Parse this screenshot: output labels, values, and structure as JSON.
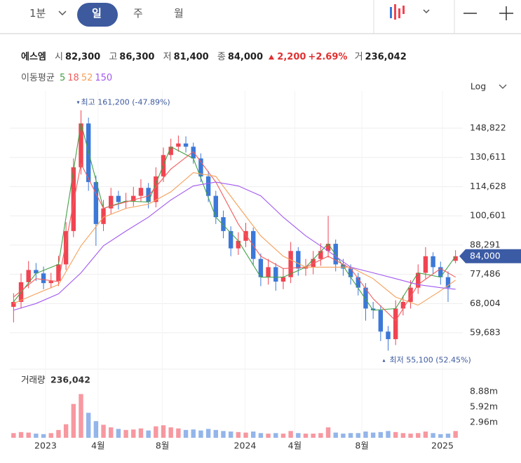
{
  "toolbar": {
    "intervals": [
      "1분",
      "일",
      "주",
      "월"
    ]
  },
  "header": {
    "name": "에스엠",
    "stats": [
      {
        "label": "시",
        "value": "82,300"
      },
      {
        "label": "고",
        "value": "86,300"
      },
      {
        "label": "저",
        "value": "81,400"
      },
      {
        "label": "종",
        "value": "84,000"
      }
    ],
    "change": "2,200",
    "change_pct": "+2.69%",
    "volume": {
      "label": "거",
      "value": "236,042"
    }
  },
  "chart_data": [
    {
      "type": "candlestick",
      "legend_title": "이동평균",
      "scale_label": "Log",
      "log_scale": true,
      "grid": true,
      "up_color": "#f04452",
      "down_color": "#3b78d8",
      "xlim": [
        -0.5,
        59.5
      ],
      "xticks": [
        {
          "value": 4.27,
          "label": "2023"
        },
        {
          "value": 11.28,
          "label": "4월"
        },
        {
          "value": 19.87,
          "label": "8월"
        },
        {
          "value": 30.9,
          "label": "2024"
        },
        {
          "value": 37.54,
          "label": "4월"
        },
        {
          "value": 46.5,
          "label": "8월"
        },
        {
          "value": 57.26,
          "label": "2025"
        }
      ],
      "ylim": [
        52670,
        170250
      ],
      "yticks": [
        {
          "value": 148822,
          "label": "148,822"
        },
        {
          "value": 130611,
          "label": "130,611"
        },
        {
          "value": 114628,
          "label": "114,628"
        },
        {
          "value": 100601,
          "label": "100,601"
        },
        {
          "value": 88291,
          "label": "88,291"
        },
        {
          "value": 77486,
          "label": "77,486"
        },
        {
          "value": 68004,
          "label": "68,004"
        },
        {
          "value": 59683,
          "label": "59,683"
        }
      ],
      "open": [
        67000,
        68500,
        74800,
        79000,
        77800,
        74500,
        75200,
        81000,
        94000,
        125000,
        152000,
        117000,
        97000,
        104000,
        110000,
        107000,
        107500,
        110000,
        114000,
        107000,
        120000,
        132000,
        137000,
        139000,
        137000,
        130000,
        120000,
        110000,
        100000,
        94000,
        87000,
        90000,
        94000,
        83000,
        76500,
        80000,
        75000,
        76500,
        86000,
        79500,
        80000,
        83000,
        86000,
        88800,
        81000,
        79500,
        76500,
        73000,
        66500,
        66000,
        60000,
        58000,
        66500,
        68500,
        73000,
        78000,
        84000,
        80000,
        76500,
        82300
      ],
      "high": [
        71200,
        77800,
        82200,
        81500,
        80200,
        78000,
        84200,
        97800,
        130000,
        161200,
        156000,
        120500,
        108000,
        114000,
        112500,
        111500,
        114500,
        118500,
        116500,
        125000,
        136500,
        142000,
        144000,
        143500,
        139500,
        133000,
        123000,
        112500,
        103000,
        96000,
        93500,
        97500,
        95500,
        85000,
        83000,
        81500,
        79500,
        89500,
        87500,
        83000,
        86000,
        89000,
        100600,
        90500,
        83000,
        81000,
        78000,
        74500,
        68500,
        67500,
        61500,
        69000,
        70500,
        75500,
        81000,
        87500,
        85500,
        82000,
        78500,
        86300
      ],
      "low": [
        62500,
        66500,
        72800,
        75200,
        72500,
        72800,
        73500,
        79000,
        91500,
        121000,
        112500,
        88000,
        94000,
        101500,
        103500,
        104000,
        105000,
        107000,
        104000,
        104500,
        117000,
        129000,
        134000,
        133500,
        127000,
        117000,
        107000,
        97000,
        91000,
        84000,
        84500,
        87500,
        80500,
        73500,
        74000,
        72000,
        72500,
        74500,
        77000,
        77000,
        77500,
        80500,
        83500,
        78500,
        77000,
        74000,
        70500,
        63000,
        63500,
        57500,
        55100,
        56500,
        64500,
        66500,
        71000,
        76000,
        77500,
        74000,
        68500,
        81400
      ],
      "close": [
        68500,
        74800,
        79000,
        77800,
        74500,
        75200,
        81000,
        94000,
        125000,
        152000,
        117000,
        97000,
        104000,
        110000,
        107000,
        107500,
        110000,
        114000,
        107000,
        120000,
        132000,
        137000,
        139000,
        137000,
        130000,
        120000,
        110000,
        100000,
        94000,
        87000,
        90000,
        94000,
        83000,
        76500,
        80000,
        75000,
        76500,
        86000,
        79500,
        80000,
        83000,
        86000,
        88800,
        81000,
        79500,
        76500,
        73000,
        66500,
        66000,
        60000,
        58000,
        66500,
        68500,
        73000,
        78000,
        84000,
        80000,
        76500,
        73000,
        84000
      ],
      "series": [
        {
          "name": "5",
          "color": "#43a047",
          "x": [
            0,
            3,
            6,
            9,
            12,
            15,
            18,
            21,
            24,
            27,
            30,
            33,
            36,
            39,
            42,
            45,
            48,
            51,
            54,
            57,
            59
          ],
          "values": [
            68500,
            77800,
            81000,
            152000,
            104000,
            107500,
            107000,
            137000,
            130000,
            100000,
            90000,
            76500,
            76500,
            80000,
            88800,
            76500,
            66000,
            66500,
            78000,
            76500,
            84000
          ]
        },
        {
          "name": "18",
          "color": "#f25c5c",
          "x": [
            0,
            3,
            6,
            9,
            12,
            15,
            18,
            21,
            24,
            27,
            30,
            33,
            36,
            39,
            42,
            45,
            48,
            51,
            54,
            57,
            59
          ],
          "values": [
            70000,
            76000,
            75000,
            127000,
            104000,
            107000,
            110000,
            124000,
            134000,
            117000,
            97000,
            84000,
            79500,
            80000,
            84000,
            79500,
            69500,
            63000,
            74000,
            79500,
            76500
          ]
        },
        {
          "name": "52",
          "color": "#f5a05a",
          "x": [
            0,
            3,
            6,
            9,
            12,
            15,
            18,
            21,
            24,
            27,
            30,
            33,
            36,
            39,
            42,
            45,
            48,
            51,
            54,
            57,
            59
          ],
          "values": [
            68000,
            71000,
            74000,
            88000,
            100000,
            104000,
            106000,
            112000,
            122000,
            120000,
            105000,
            92000,
            84000,
            80000,
            80000,
            80000,
            76000,
            70000,
            67500,
            72000,
            75500
          ]
        },
        {
          "name": "150",
          "color": "#a259f0",
          "x": [
            0,
            3,
            6,
            9,
            12,
            15,
            18,
            21,
            24,
            27,
            30,
            33,
            36,
            39,
            42,
            45,
            48,
            51,
            54,
            57,
            59
          ],
          "values": [
            66000,
            68000,
            71000,
            78000,
            88000,
            94000,
            100000,
            108000,
            115000,
            117000,
            115000,
            110000,
            100000,
            92000,
            86000,
            80000,
            78000,
            76000,
            74000,
            73000,
            72500
          ]
        }
      ],
      "max_label": "최고 161,200 (-47.89%)",
      "min_label": "최저 55,100 (52.45%)",
      "last_price": {
        "value": 84000,
        "label": "84,000"
      }
    },
    {
      "type": "bar",
      "title": "거래량",
      "current": "236,042",
      "ylim": [
        0,
        12780000
      ],
      "yticks": [
        {
          "value": 2960000,
          "label": "2.96m"
        },
        {
          "value": 5920000,
          "label": "5.92m"
        },
        {
          "value": 8880000,
          "label": "8.88m"
        }
      ],
      "values": [
        900000,
        1100000,
        1000000,
        800000,
        700000,
        900000,
        1500000,
        2600000,
        6500000,
        8400000,
        4800000,
        3200000,
        2500000,
        2000000,
        1700000,
        1500000,
        1600000,
        1800000,
        1400000,
        2200000,
        2400000,
        2000000,
        1800000,
        1500000,
        1600000,
        1400000,
        1700000,
        1500000,
        1300000,
        1200000,
        1100000,
        1000000,
        1200000,
        900000,
        800000,
        900000,
        800000,
        1300000,
        900000,
        800000,
        800000,
        900000,
        2000000,
        1000000,
        800000,
        900000,
        900000,
        1200000,
        1000000,
        1100000,
        1300000,
        1100000,
        900000,
        800000,
        900000,
        1200000,
        900000,
        700000,
        800000,
        1300000
      ]
    }
  ]
}
